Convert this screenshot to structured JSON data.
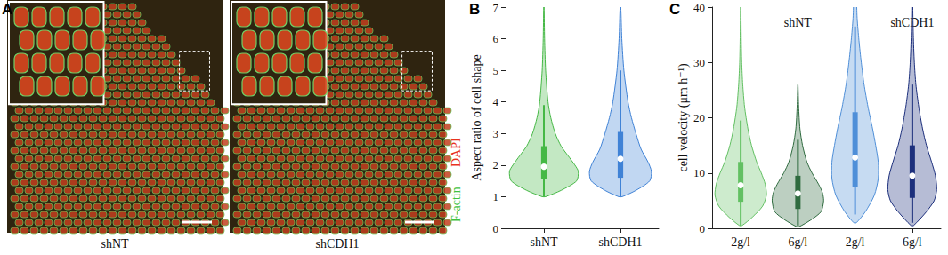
{
  "chart_data": [
    {
      "type": "image",
      "panel": "A",
      "labels": [
        "shNT",
        "shCDH1"
      ],
      "channels": [
        {
          "name": "F-actin",
          "color": "#3ec23e"
        },
        {
          "name": "DAPI",
          "color": "#e8321e"
        }
      ]
    },
    {
      "type": "violin",
      "panel": "B",
      "y_label": "Aspect ratio of cell shape",
      "categories": [
        "shNT",
        "shCDH1"
      ],
      "colors": [
        "#45b845",
        "#3f82d6"
      ],
      "ylim": [
        0,
        7
      ],
      "yticks": [
        0,
        1,
        2,
        3,
        4,
        5,
        6,
        7
      ],
      "violins": [
        {
          "quartiles": [
            1.55,
            1.95,
            2.6
          ],
          "whiskers": [
            1.0,
            3.9
          ],
          "density": {
            "y": [
              1.0,
              1.2,
              1.5,
              1.8,
              2.0,
              2.3,
              2.6,
              3.0,
              3.5,
              4.0,
              5.0,
              6.0,
              7.0
            ],
            "width": [
              0.05,
              0.5,
              0.95,
              1.0,
              0.9,
              0.7,
              0.5,
              0.33,
              0.2,
              0.12,
              0.05,
              0.02,
              0.005
            ]
          }
        },
        {
          "quartiles": [
            1.6,
            2.2,
            3.05
          ],
          "whiskers": [
            1.0,
            5.0
          ],
          "density": {
            "y": [
              1.0,
              1.2,
              1.5,
              1.8,
              2.1,
              2.5,
              3.0,
              3.5,
              4.0,
              5.0,
              6.0,
              7.0
            ],
            "width": [
              0.05,
              0.45,
              0.85,
              0.9,
              0.8,
              0.6,
              0.45,
              0.32,
              0.22,
              0.1,
              0.04,
              0.01
            ]
          }
        }
      ]
    },
    {
      "type": "violin",
      "panel": "C",
      "y_label": "cell velocity (μm h⁻¹)",
      "categories": [
        "2g/l",
        "6g/l",
        "2g/l",
        "6g/l"
      ],
      "colors": [
        "#62c062",
        "#2f6b3f",
        "#4f8fd8",
        "#1c2f7c"
      ],
      "groups": [
        {
          "label": "shNT",
          "members": [
            0,
            1
          ]
        },
        {
          "label": "shCDH1",
          "members": [
            2,
            3
          ]
        }
      ],
      "ylim": [
        0,
        40
      ],
      "yticks": [
        0,
        10,
        20,
        30,
        40
      ],
      "violins": [
        {
          "quartiles": [
            4.8,
            7.8,
            12.0
          ],
          "whiskers": [
            0.5,
            19.5
          ],
          "density": {
            "y": [
              0.5,
              2,
              4,
              6,
              8,
              10,
              12,
              15,
              18,
              22,
              26,
              30,
              35,
              40,
              45
            ],
            "width": [
              0.05,
              0.45,
              0.85,
              1.0,
              0.95,
              0.8,
              0.62,
              0.42,
              0.28,
              0.15,
              0.08,
              0.04,
              0.02,
              0.01,
              0.005
            ]
          }
        },
        {
          "quartiles": [
            3.5,
            6.3,
            9.5
          ],
          "whiskers": [
            0.5,
            16.0
          ],
          "density": {
            "y": [
              0.3,
              1.5,
              3,
              5,
              6.5,
              8,
              10,
              12,
              15,
              18,
              22,
              26
            ],
            "width": [
              0.05,
              0.5,
              0.9,
              1.0,
              0.95,
              0.8,
              0.55,
              0.35,
              0.18,
              0.08,
              0.03,
              0.005
            ]
          }
        },
        {
          "quartiles": [
            7.5,
            12.8,
            21.0
          ],
          "whiskers": [
            2.5,
            36.5
          ],
          "density": {
            "y": [
              1,
              3,
              6,
              9,
              12,
              15,
              18,
              22,
              26,
              30,
              34,
              38,
              42
            ],
            "width": [
              0.05,
              0.4,
              0.75,
              0.9,
              0.9,
              0.8,
              0.68,
              0.5,
              0.35,
              0.24,
              0.15,
              0.08,
              0.04
            ]
          }
        },
        {
          "quartiles": [
            5.5,
            9.5,
            15.0
          ],
          "whiskers": [
            1.0,
            26.0
          ],
          "density": {
            "y": [
              0.5,
              3,
              5,
              7,
              9.5,
              12,
              15,
              18,
              22,
              26,
              30,
              35,
              40,
              45
            ],
            "width": [
              0.05,
              0.55,
              0.85,
              0.95,
              0.9,
              0.75,
              0.55,
              0.4,
              0.25,
              0.14,
              0.08,
              0.04,
              0.02,
              0.01
            ]
          }
        }
      ]
    }
  ]
}
